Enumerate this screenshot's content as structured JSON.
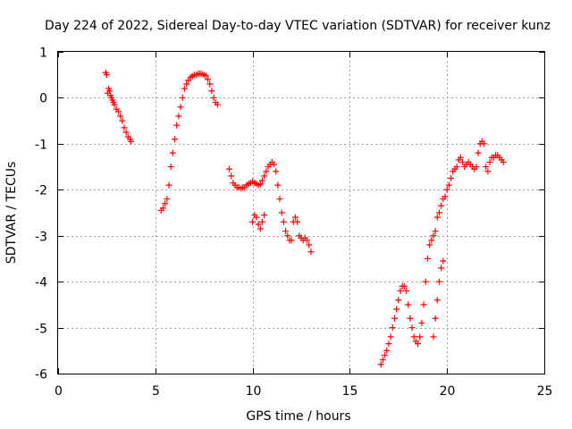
{
  "chart_data": {
    "type": "scatter",
    "title": "Day 224 of 2022, Sidereal Day-to-day VTEC variation (SDTVAR) for receiver kunz",
    "xlabel": "GPS time / hours",
    "ylabel": "SDTVAR / TECUs",
    "xlim": [
      0,
      25
    ],
    "ylim": [
      -6,
      1
    ],
    "xticks": [
      "0",
      "5",
      "10",
      "15",
      "20",
      "25"
    ],
    "yticks": [
      "1",
      "0",
      "-1",
      "-2",
      "-3",
      "-4",
      "-5",
      "-6"
    ],
    "grid": true,
    "marker": "plus",
    "color": "#ff0000",
    "series": [
      {
        "x": [
          2.45,
          2.5,
          2.55,
          2.6,
          2.65,
          2.7,
          2.75,
          2.8,
          2.85,
          2.9,
          3.0,
          3.1,
          3.2,
          3.3,
          3.4,
          3.5,
          3.6,
          3.7,
          3.75
        ],
        "y": [
          0.55,
          0.5,
          0.1,
          0.2,
          0.15,
          0.05,
          0.0,
          -0.05,
          -0.1,
          -0.15,
          -0.25,
          -0.3,
          -0.4,
          -0.5,
          -0.65,
          -0.75,
          -0.85,
          -0.9,
          -0.95
        ]
      },
      {
        "x": [
          5.3,
          5.4,
          5.5,
          5.6,
          5.7,
          5.8,
          5.9,
          6.0,
          6.1,
          6.2,
          6.3,
          6.4,
          6.5,
          6.6,
          6.7,
          6.8,
          6.9,
          7.0,
          7.1,
          7.2,
          7.3,
          7.4,
          7.5,
          7.6,
          7.7,
          7.8,
          7.9,
          8.0,
          8.1,
          8.2
        ],
        "y": [
          -2.45,
          -2.4,
          -2.3,
          -2.2,
          -1.9,
          -1.5,
          -1.2,
          -0.9,
          -0.6,
          -0.4,
          -0.2,
          0.0,
          0.2,
          0.3,
          0.38,
          0.44,
          0.47,
          0.5,
          0.5,
          0.52,
          0.53,
          0.52,
          0.5,
          0.48,
          0.4,
          0.3,
          0.15,
          0.0,
          -0.1,
          -0.15
        ]
      },
      {
        "x": [
          8.8,
          8.9,
          9.0,
          9.1,
          9.2,
          9.3,
          9.4,
          9.5,
          9.6,
          9.7,
          9.8,
          9.9,
          10.0,
          10.1,
          10.2,
          10.3,
          10.4,
          10.5,
          10.6,
          10.7,
          10.8,
          10.9,
          11.0,
          11.1,
          11.2,
          11.3,
          11.4,
          11.5,
          11.6,
          11.7,
          11.8,
          11.9,
          12.0,
          12.1,
          12.2,
          12.3,
          12.4,
          12.5,
          12.6,
          12.7,
          12.8,
          12.9,
          13.0
        ],
        "y": [
          -1.55,
          -1.7,
          -1.85,
          -1.9,
          -1.95,
          -1.95,
          -1.97,
          -1.95,
          -1.95,
          -1.9,
          -1.87,
          -1.85,
          -1.82,
          -1.85,
          -1.87,
          -1.9,
          -1.88,
          -1.8,
          -1.7,
          -1.6,
          -1.5,
          -1.45,
          -1.4,
          -1.45,
          -1.6,
          -1.9,
          -2.2,
          -2.5,
          -2.7,
          -2.9,
          -3.0,
          -3.1,
          -3.1,
          -2.7,
          -2.6,
          -2.7,
          -3.0,
          -3.05,
          -3.1,
          -3.05,
          -3.1,
          -3.2,
          -3.35
        ]
      },
      {
        "x": [
          10.0,
          10.1,
          10.2,
          10.3,
          10.4,
          10.5,
          10.6
        ],
        "y": [
          -2.7,
          -2.55,
          -2.6,
          -2.75,
          -2.85,
          -2.7,
          -2.55
        ]
      },
      {
        "x": [
          16.6,
          16.7,
          16.8,
          16.9,
          17.0,
          17.1,
          17.2,
          17.3,
          17.4,
          17.5,
          17.6,
          17.7,
          17.8,
          17.9,
          18.0,
          18.1,
          18.2,
          18.3,
          18.4,
          18.5,
          18.6,
          18.7,
          18.8,
          18.9,
          19.0,
          19.1,
          19.2,
          19.3,
          19.4,
          19.5,
          19.6,
          19.7,
          19.8,
          19.9,
          20.0,
          20.1,
          20.2,
          20.3,
          20.4,
          20.5,
          20.6,
          20.7,
          20.8,
          20.9,
          21.0,
          21.1,
          21.2,
          21.3,
          21.4,
          21.5,
          21.6,
          21.7,
          21.8,
          21.9,
          22.0,
          22.1,
          22.2,
          22.3,
          22.4,
          22.5,
          22.6,
          22.7,
          22.8,
          22.9
        ],
        "y": [
          -5.8,
          -5.7,
          -5.6,
          -5.5,
          -5.35,
          -5.2,
          -5.0,
          -4.8,
          -4.6,
          -4.4,
          -4.2,
          -4.1,
          -4.1,
          -4.2,
          -4.5,
          -4.8,
          -5.0,
          -5.2,
          -5.3,
          -5.35,
          -5.2,
          -4.9,
          -4.5,
          -4.0,
          -3.5,
          -3.2,
          -3.1,
          -3.0,
          -2.9,
          -2.6,
          -2.5,
          -2.35,
          -2.2,
          -2.15,
          -2.0,
          -1.9,
          -1.75,
          -1.6,
          -1.55,
          -1.5,
          -1.35,
          -1.3,
          -1.4,
          -1.5,
          -1.45,
          -1.4,
          -1.45,
          -1.5,
          -1.55,
          -1.5,
          -1.2,
          -1.0,
          -0.95,
          -1.0,
          -1.5,
          -1.6,
          -1.4,
          -1.3,
          -1.3,
          -1.25,
          -1.25,
          -1.3,
          -1.35,
          -1.4
        ]
      },
      {
        "x": [
          19.3,
          19.4,
          19.5,
          19.6,
          19.7,
          19.8
        ],
        "y": [
          -5.2,
          -4.8,
          -4.4,
          -4.0,
          -3.7,
          -3.55
        ]
      }
    ]
  }
}
